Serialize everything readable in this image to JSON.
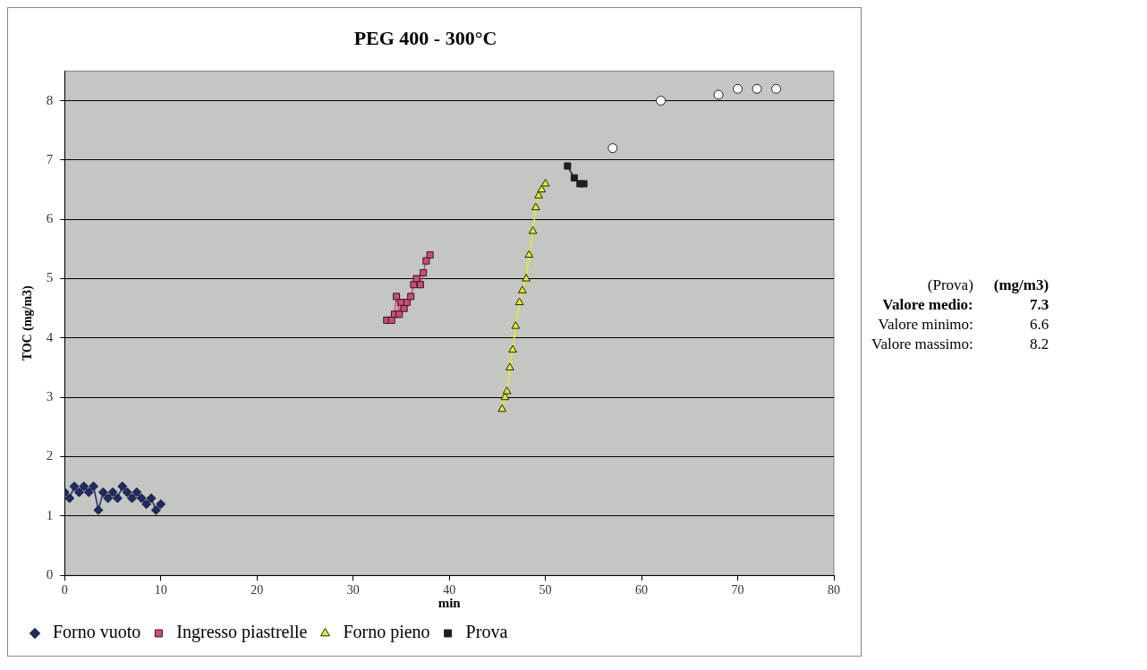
{
  "chart_data": {
    "type": "line",
    "title": "PEG 400 - 300°C",
    "xlabel": "min",
    "ylabel": "TOC (mg/m3)",
    "xlim": [
      0,
      80
    ],
    "xticks": [
      0,
      10,
      20,
      30,
      40,
      50,
      60,
      70,
      80
    ],
    "ylim": [
      0,
      8.5
    ],
    "yticks": [
      0,
      1,
      2,
      3,
      4,
      5,
      6,
      7,
      8
    ],
    "grid": "y",
    "legend": "bottom",
    "series": [
      {
        "name": "Forno vuoto",
        "color": "#1c2a6e",
        "marker": "diamond",
        "x": [
          0,
          0.5,
          1,
          1.5,
          2,
          2.5,
          3,
          3.5,
          4,
          4.5,
          5,
          5.5,
          6,
          6.5,
          7,
          7.5,
          8,
          8.5,
          9,
          9.5,
          10
        ],
        "values": [
          1.4,
          1.3,
          1.5,
          1.4,
          1.5,
          1.4,
          1.5,
          1.1,
          1.4,
          1.3,
          1.4,
          1.3,
          1.5,
          1.4,
          1.3,
          1.4,
          1.3,
          1.2,
          1.3,
          1.1,
          1.2
        ]
      },
      {
        "name": "Ingresso piastrelle",
        "color": "#d8457e",
        "marker": "square",
        "x": [
          33.5,
          34,
          34.3,
          34.5,
          34.8,
          35,
          35.3,
          35.6,
          36,
          36.3,
          36.6,
          37,
          37.3,
          37.6,
          38
        ],
        "values": [
          4.3,
          4.3,
          4.4,
          4.7,
          4.4,
          4.6,
          4.5,
          4.6,
          4.7,
          4.9,
          5.0,
          4.9,
          5.1,
          5.3,
          5.4
        ]
      },
      {
        "name": "Forno pieno",
        "color": "#e8ee1c",
        "marker": "triangle",
        "x": [
          45.5,
          45.8,
          46,
          46.3,
          46.6,
          46.9,
          47.3,
          47.6,
          48,
          48.3,
          48.7,
          49,
          49.3,
          49.6,
          50
        ],
        "values": [
          2.8,
          3.0,
          3.1,
          3.5,
          3.8,
          4.2,
          4.6,
          4.8,
          5.0,
          5.4,
          5.8,
          6.2,
          6.4,
          6.5,
          6.6
        ]
      },
      {
        "name": "Prova",
        "color": "#1e1e1e",
        "marker": "square",
        "x": [
          52.3,
          53,
          53.6,
          54
        ],
        "values": [
          6.9,
          6.7,
          6.6,
          6.6
        ]
      },
      {
        "type": "scatter",
        "color": "#ffffff",
        "marker": "circle",
        "x": [
          57,
          62,
          68,
          70,
          72,
          74
        ],
        "values": [
          7.2,
          8.0,
          8.1,
          8.2,
          8.2,
          8.2
        ]
      }
    ],
    "annotations": [
      "(Prova)",
      "(mg/m3)",
      "Valore medio:",
      "7.3",
      "Valore minimo:",
      "6.6",
      "Valore massimo:",
      "8.2"
    ]
  }
}
